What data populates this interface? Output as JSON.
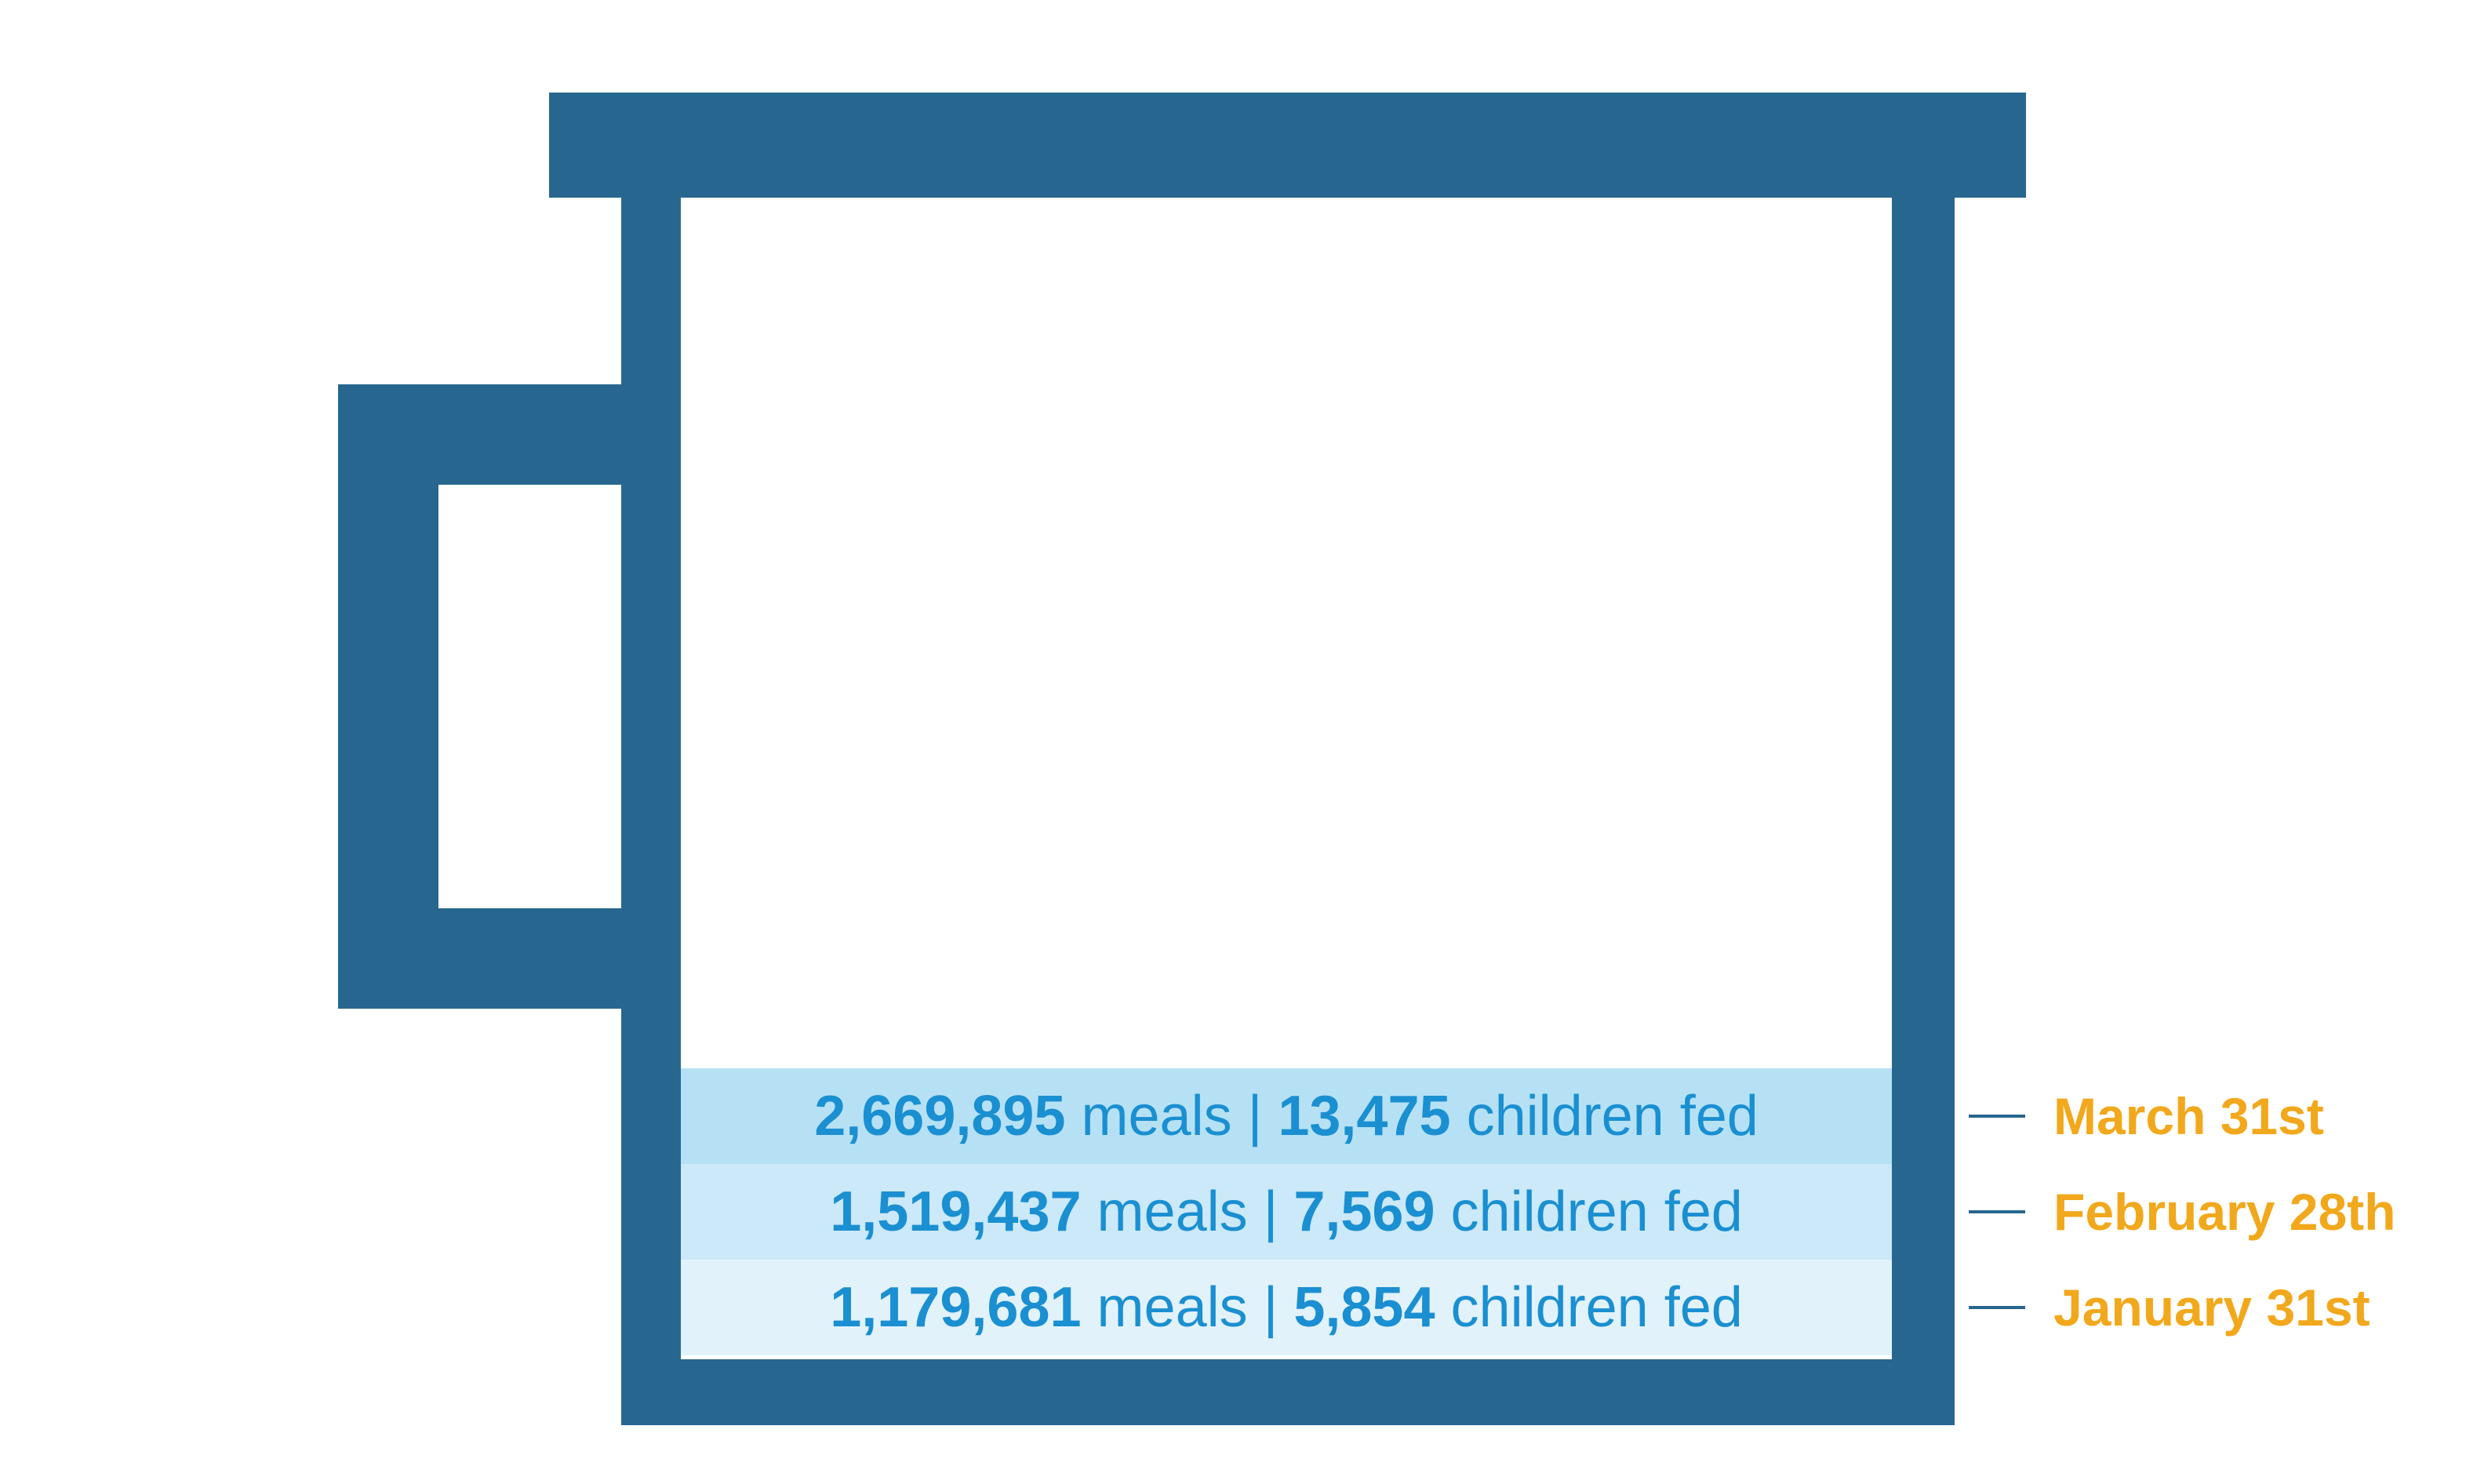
{
  "colors": {
    "mug": "#27678f",
    "text_blue": "#1a8fd1",
    "date_orange": "#f2a81c",
    "fill_levels": [
      "#b6e1f5",
      "#cbe9f8",
      "#e2f2fb"
    ]
  },
  "levels": [
    {
      "meals": "2,669,895",
      "meals_label": "meals",
      "separator": "|",
      "children": "13,475",
      "children_label": "children fed",
      "date": "March 31st"
    },
    {
      "meals": "1,519,437",
      "meals_label": "meals",
      "separator": "|",
      "children": "7,569",
      "children_label": "children fed",
      "date": "February 28th"
    },
    {
      "meals": "1,179,681",
      "meals_label": "meals",
      "separator": "|",
      "children": "5,854",
      "children_label": "children fed",
      "date": "January 31st"
    }
  ]
}
